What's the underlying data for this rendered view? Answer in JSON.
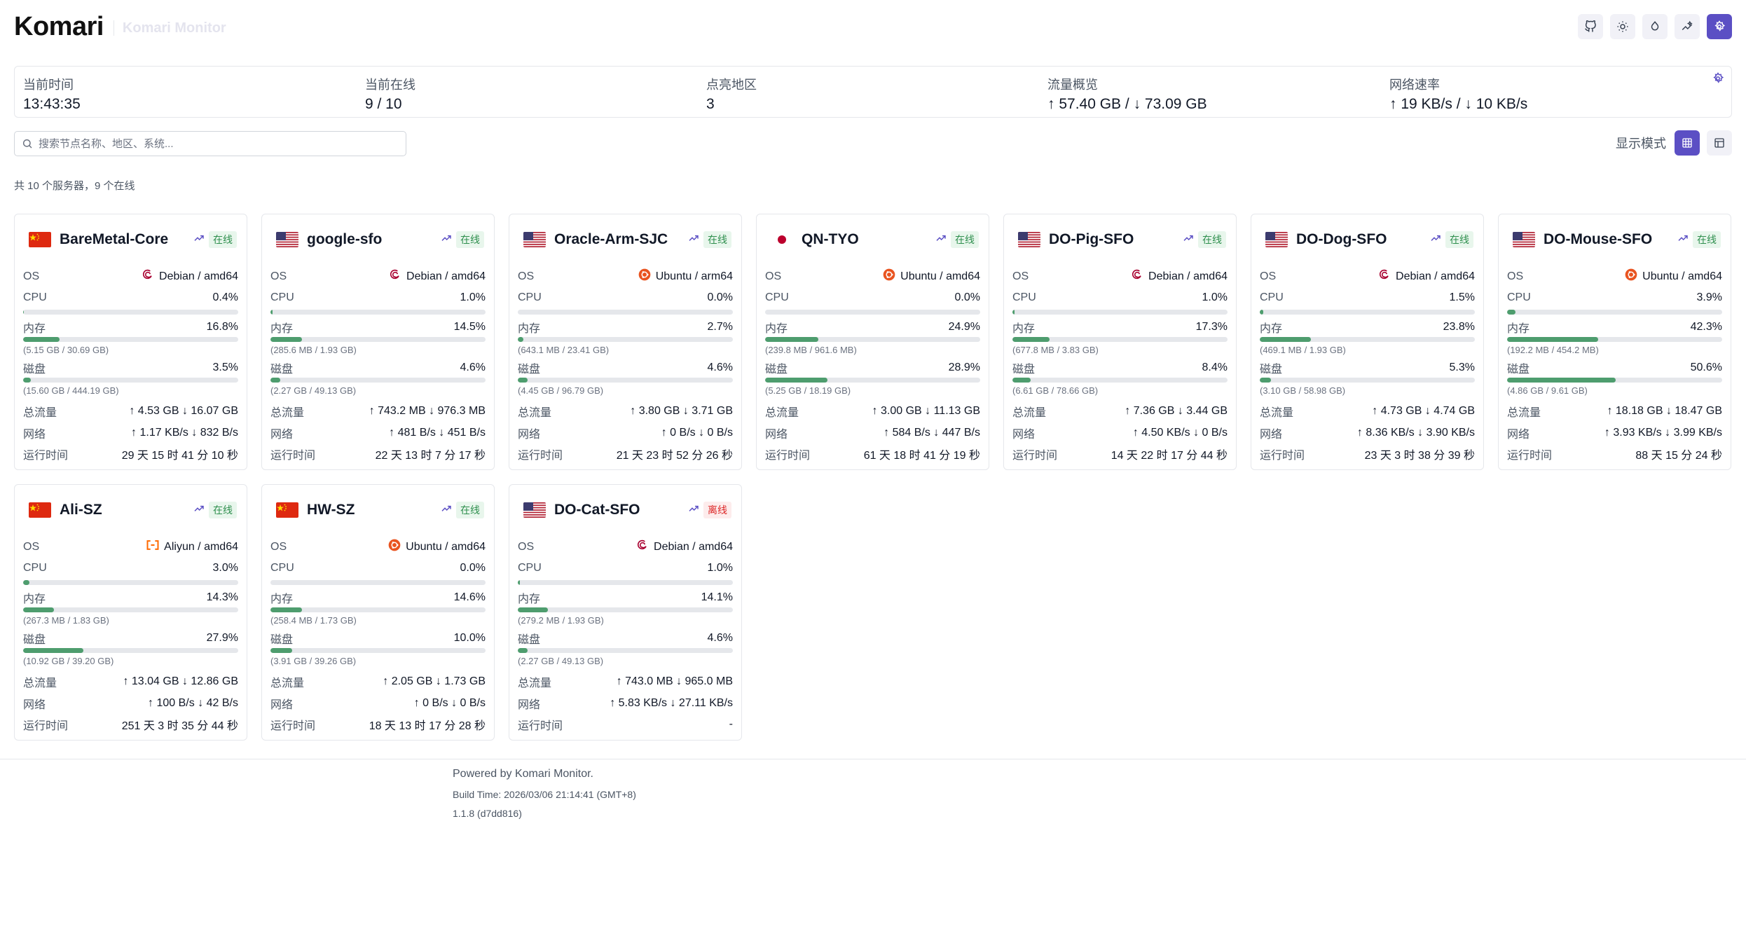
{
  "header": {
    "logo": "Komari",
    "subtitle": "Komari Monitor"
  },
  "header_buttons": [
    "github-icon",
    "sun-icon",
    "theme-color-icon",
    "sparkle-chart-icon",
    "settings-icon"
  ],
  "stats": [
    {
      "label": "当前时间",
      "value": "13:43:35"
    },
    {
      "label": "当前在线",
      "value": "9 / 10"
    },
    {
      "label": "点亮地区",
      "value": "3"
    },
    {
      "label": "流量概览",
      "value": "↑ 57.40 GB / ↓ 73.09 GB"
    },
    {
      "label": "网络速率",
      "value": "↑ 19 KB/s / ↓ 10 KB/s"
    }
  ],
  "search": {
    "placeholder": "搜索节点名称、地区、系统..."
  },
  "view_mode": {
    "label": "显示模式"
  },
  "summary": "共 10 个服务器，9 个在线",
  "labels": {
    "os": "OS",
    "cpu": "CPU",
    "mem": "内存",
    "disk": "磁盘",
    "traffic": "总流量",
    "net": "网络",
    "uptime": "运行时间"
  },
  "colors": {
    "accent": "#5b4fc4",
    "bar": "#4e9d6e",
    "online": "#2f8f4e",
    "offline": "#dc2626"
  },
  "servers": [
    {
      "name": "BareMetal-Core",
      "flag": "cn",
      "status": "在线",
      "online": true,
      "os_icon": "debian",
      "os": "Debian / amd64",
      "cpu": "0.4%",
      "cpu_pct": 0.4,
      "mem": "16.8%",
      "mem_pct": 16.8,
      "mem_detail": "(5.15 GB / 30.69 GB)",
      "disk": "3.5%",
      "disk_pct": 3.5,
      "disk_detail": "(15.60 GB / 444.19 GB)",
      "traffic": "↑ 4.53 GB ↓ 16.07 GB",
      "net": "↑ 1.17 KB/s ↓ 832 B/s",
      "uptime": "29 天 15 时 41 分 10 秒"
    },
    {
      "name": "google-sfo",
      "flag": "us",
      "status": "在线",
      "online": true,
      "os_icon": "debian",
      "os": "Debian / amd64",
      "cpu": "1.0%",
      "cpu_pct": 1.0,
      "mem": "14.5%",
      "mem_pct": 14.5,
      "mem_detail": "(285.6 MB / 1.93 GB)",
      "disk": "4.6%",
      "disk_pct": 4.6,
      "disk_detail": "(2.27 GB / 49.13 GB)",
      "traffic": "↑ 743.2 MB ↓ 976.3 MB",
      "net": "↑ 481 B/s ↓ 451 B/s",
      "uptime": "22 天 13 时 7 分 17 秒"
    },
    {
      "name": "Oracle-Arm-SJC",
      "flag": "us",
      "status": "在线",
      "online": true,
      "os_icon": "ubuntu",
      "os": "Ubuntu / arm64",
      "cpu": "0.0%",
      "cpu_pct": 0.0,
      "mem": "2.7%",
      "mem_pct": 2.7,
      "mem_detail": "(643.1 MB / 23.41 GB)",
      "disk": "4.6%",
      "disk_pct": 4.6,
      "disk_detail": "(4.45 GB / 96.79 GB)",
      "traffic": "↑ 3.80 GB ↓ 3.71 GB",
      "net": "↑ 0 B/s ↓ 0 B/s",
      "uptime": "21 天 23 时 52 分 26 秒"
    },
    {
      "name": "QN-TYO",
      "flag": "jp",
      "status": "在线",
      "online": true,
      "os_icon": "ubuntu",
      "os": "Ubuntu / amd64",
      "cpu": "0.0%",
      "cpu_pct": 0.0,
      "mem": "24.9%",
      "mem_pct": 24.9,
      "mem_detail": "(239.8 MB / 961.6 MB)",
      "disk": "28.9%",
      "disk_pct": 28.9,
      "disk_detail": "(5.25 GB / 18.19 GB)",
      "traffic": "↑ 3.00 GB ↓ 11.13 GB",
      "net": "↑ 584 B/s ↓ 447 B/s",
      "uptime": "61 天 18 时 41 分 19 秒"
    },
    {
      "name": "DO-Pig-SFO",
      "flag": "us",
      "status": "在线",
      "online": true,
      "os_icon": "debian",
      "os": "Debian / amd64",
      "cpu": "1.0%",
      "cpu_pct": 1.0,
      "mem": "17.3%",
      "mem_pct": 17.3,
      "mem_detail": "(677.8 MB / 3.83 GB)",
      "disk": "8.4%",
      "disk_pct": 8.4,
      "disk_detail": "(6.61 GB / 78.66 GB)",
      "traffic": "↑ 7.36 GB ↓ 3.44 GB",
      "net": "↑ 4.50 KB/s ↓ 0 B/s",
      "uptime": "14 天 22 时 17 分 44 秒"
    },
    {
      "name": "DO-Dog-SFO",
      "flag": "us",
      "status": "在线",
      "online": true,
      "os_icon": "debian",
      "os": "Debian / amd64",
      "cpu": "1.5%",
      "cpu_pct": 1.5,
      "mem": "23.8%",
      "mem_pct": 23.8,
      "mem_detail": "(469.1 MB / 1.93 GB)",
      "disk": "5.3%",
      "disk_pct": 5.3,
      "disk_detail": "(3.10 GB / 58.98 GB)",
      "traffic": "↑ 4.73 GB ↓ 4.74 GB",
      "net": "↑ 8.36 KB/s ↓ 3.90 KB/s",
      "uptime": "23 天 3 时 38 分 39 秒"
    },
    {
      "name": "DO-Mouse-SFO",
      "flag": "us",
      "status": "在线",
      "online": true,
      "os_icon": "ubuntu",
      "os": "Ubuntu / amd64",
      "cpu": "3.9%",
      "cpu_pct": 3.9,
      "mem": "42.3%",
      "mem_pct": 42.3,
      "mem_detail": "(192.2 MB / 454.2 MB)",
      "disk": "50.6%",
      "disk_pct": 50.6,
      "disk_detail": "(4.86 GB / 9.61 GB)",
      "traffic": "↑ 18.18 GB ↓ 18.47 GB",
      "net": "↑ 3.93 KB/s ↓ 3.99 KB/s",
      "uptime": "88 天 15 分 24 秒"
    },
    {
      "name": "Ali-SZ",
      "flag": "cn",
      "status": "在线",
      "online": true,
      "os_icon": "aliyun",
      "os": "Aliyun / amd64",
      "cpu": "3.0%",
      "cpu_pct": 3.0,
      "mem": "14.3%",
      "mem_pct": 14.3,
      "mem_detail": "(267.3 MB / 1.83 GB)",
      "disk": "27.9%",
      "disk_pct": 27.9,
      "disk_detail": "(10.92 GB / 39.20 GB)",
      "traffic": "↑ 13.04 GB ↓ 12.86 GB",
      "net": "↑ 100 B/s ↓ 42 B/s",
      "uptime": "251 天 3 时 35 分 44 秒"
    },
    {
      "name": "HW-SZ",
      "flag": "cn",
      "status": "在线",
      "online": true,
      "os_icon": "ubuntu",
      "os": "Ubuntu / amd64",
      "cpu": "0.0%",
      "cpu_pct": 0.0,
      "mem": "14.6%",
      "mem_pct": 14.6,
      "mem_detail": "(258.4 MB / 1.73 GB)",
      "disk": "10.0%",
      "disk_pct": 10.0,
      "disk_detail": "(3.91 GB / 39.26 GB)",
      "traffic": "↑ 2.05 GB ↓ 1.73 GB",
      "net": "↑ 0 B/s ↓ 0 B/s",
      "uptime": "18 天 13 时 17 分 28 秒"
    },
    {
      "name": "DO-Cat-SFO",
      "flag": "us",
      "status": "离线",
      "online": false,
      "os_icon": "debian",
      "os": "Debian / amd64",
      "cpu": "1.0%",
      "cpu_pct": 1.0,
      "mem": "14.1%",
      "mem_pct": 14.1,
      "mem_detail": "(279.2 MB / 1.93 GB)",
      "disk": "4.6%",
      "disk_pct": 4.6,
      "disk_detail": "(2.27 GB / 49.13 GB)",
      "traffic": "↑ 743.0 MB ↓ 965.0 MB",
      "net": "↑ 5.83 KB/s ↓ 27.11 KB/s",
      "uptime": "-"
    }
  ],
  "footer": {
    "powered": "Powered by Komari Monitor.",
    "build": "Build Time: 2026/03/06 21:14:41 (GMT+8)",
    "version": "1.1.8 (d7dd816)"
  }
}
